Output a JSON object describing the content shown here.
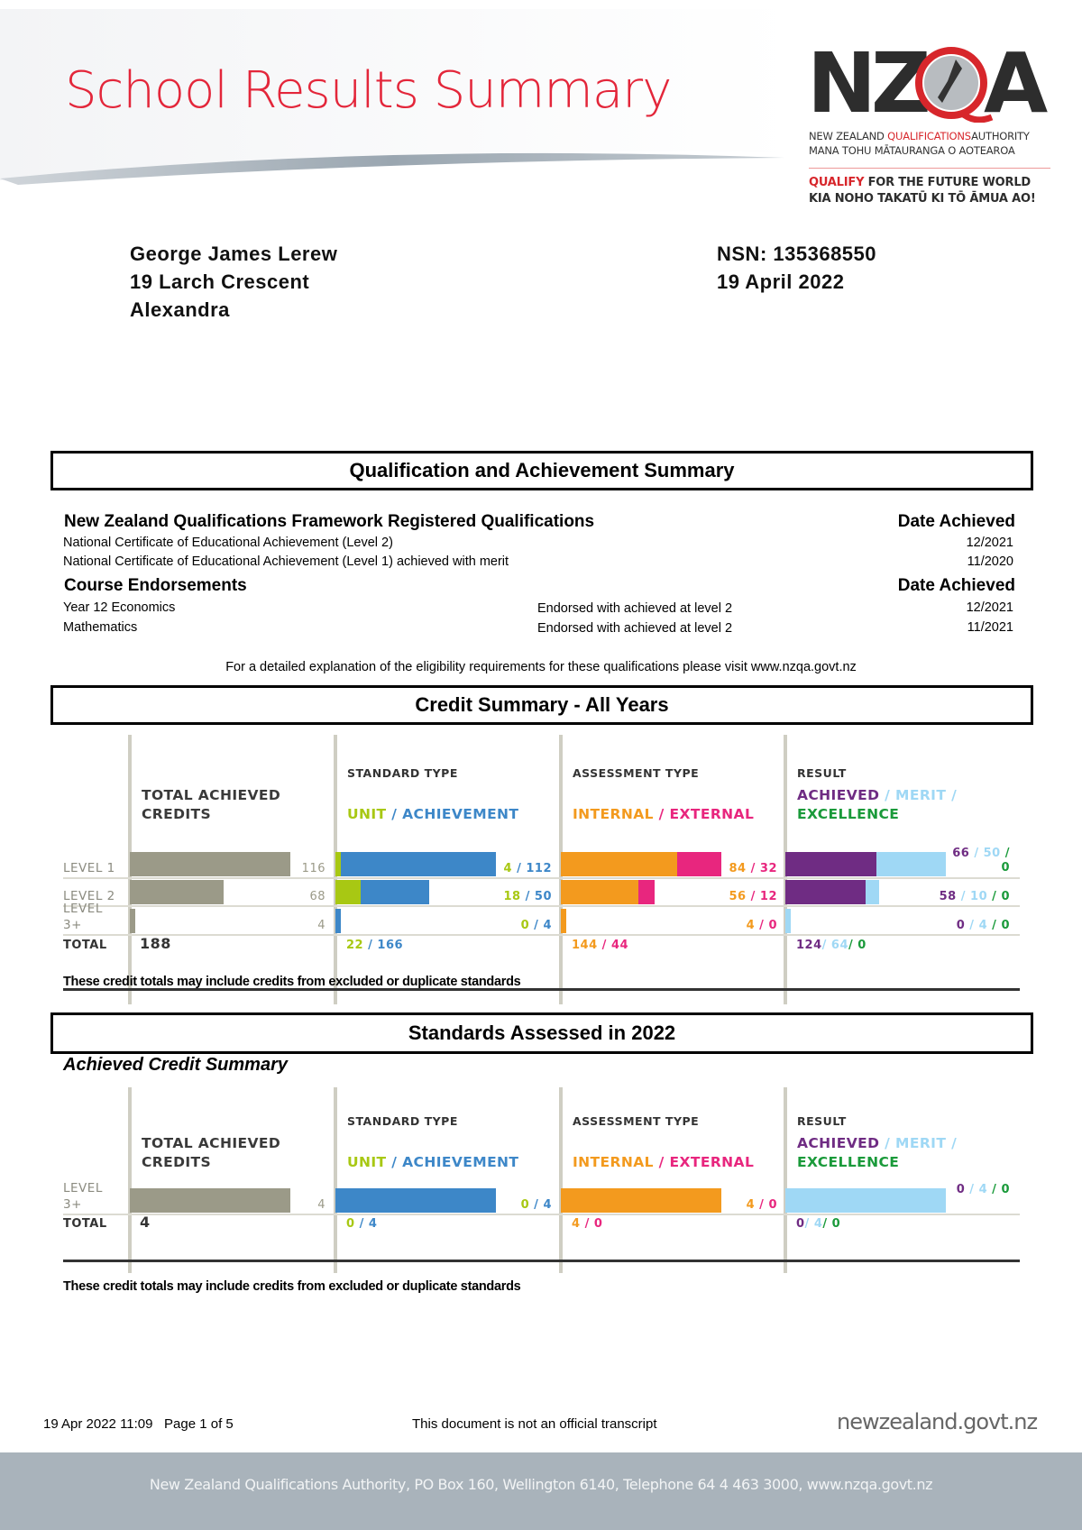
{
  "header": {
    "title": "School Results Summary",
    "logo": {
      "wordmark": "NZQA",
      "line1_a": "NEW ZEALAND ",
      "line1_b": "QUALIFICATIONS",
      "line1_c": "AUTHORITY",
      "line2": "MANA TOHU MĀTAURANGA O AOTEAROA",
      "tag1_a": "QUALIFY",
      "tag1_b": " FOR THE FUTURE WORLD",
      "tag2": "KIA NOHO TAKATŪ KI TŌ ĀMUA AO!"
    }
  },
  "student": {
    "name": "George James Lerew",
    "address1": "19 Larch Crescent",
    "address2": "Alexandra",
    "nsn": "NSN:  135368550",
    "date": "19 April 2022"
  },
  "qualification_summary": {
    "title": "Qualification and Achievement Summary",
    "qualifications_heading": "New Zealand Qualifications Framework Registered Qualifications",
    "date_heading": "Date Achieved",
    "qualifications": [
      {
        "name": "National Certificate of Educational Achievement (Level 2)",
        "date": "12/2021"
      },
      {
        "name": "National Certificate of Educational Achievement (Level 1) achieved with merit",
        "date": "11/2020"
      }
    ],
    "endorsements_heading": "Course Endorsements",
    "endorsements": [
      {
        "course": "Year 12 Economics",
        "endorsement": "Endorsed with achieved at level 2",
        "date": "12/2021"
      },
      {
        "course": "Mathematics",
        "endorsement": "Endorsed with achieved at level 2",
        "date": "11/2021"
      }
    ],
    "note": "For a detailed explanation of the eligibility requirements for these qualifications please visit www.nzqa.govt.nz"
  },
  "credit_summary": {
    "title": "Credit Summary - All Years",
    "note": "These credit totals may include credits from excluded or duplicate standards"
  },
  "standards_2022": {
    "title": "Standards Assessed in 2022",
    "subtitle": "Achieved Credit Summary",
    "note": "These credit totals may include credits from excluded or duplicate standards"
  },
  "colors": {
    "total": "#9b9a88",
    "unit": "#a8c813",
    "achievement": "#3d87c8",
    "internal": "#f39a1e",
    "external": "#e8267e",
    "achieved": "#6f2c83",
    "merit": "#9fd8f5",
    "excellence": "#1a9a3a"
  },
  "chart_data": [
    {
      "type": "bar",
      "headers": {
        "total": "TOTAL ACHIEVED CREDITS",
        "standard_type": "STANDARD TYPE",
        "standard_series": [
          "UNIT",
          "ACHIEVEMENT"
        ],
        "assessment_type": "ASSESSMENT TYPE",
        "assessment_series": [
          "INTERNAL",
          "EXTERNAL"
        ],
        "result": "RESULT",
        "result_series": [
          "ACHIEVED",
          "MERIT",
          "EXCELLENCE"
        ],
        "total_row": "TOTAL"
      },
      "rows": [
        {
          "level": "LEVEL 1",
          "total": 116,
          "unit": 4,
          "achievement": 112,
          "internal": 84,
          "external": 32,
          "achieved": 66,
          "merit": 50,
          "excellence": 0
        },
        {
          "level": "LEVEL 2",
          "total": 68,
          "unit": 18,
          "achievement": 50,
          "internal": 56,
          "external": 12,
          "achieved": 58,
          "merit": 10,
          "excellence": 0
        },
        {
          "level": "LEVEL 3+",
          "total": 4,
          "unit": 0,
          "achievement": 4,
          "internal": 4,
          "external": 0,
          "achieved": 0,
          "merit": 4,
          "excellence": 0
        }
      ],
      "totals": {
        "total": 188,
        "unit": 22,
        "achievement": 166,
        "internal": 144,
        "external": 44,
        "achieved": 124,
        "merit": 64,
        "excellence": 0
      }
    },
    {
      "type": "bar",
      "headers": {
        "total": "TOTAL ACHIEVED CREDITS",
        "standard_type": "STANDARD TYPE",
        "standard_series": [
          "UNIT",
          "ACHIEVEMENT"
        ],
        "assessment_type": "ASSESSMENT TYPE",
        "assessment_series": [
          "INTERNAL",
          "EXTERNAL"
        ],
        "result": "RESULT",
        "result_series": [
          "ACHIEVED",
          "MERIT",
          "EXCELLENCE"
        ],
        "total_row": "TOTAL"
      },
      "rows": [
        {
          "level": "LEVEL 3+",
          "total": 4,
          "unit": 0,
          "achievement": 4,
          "internal": 4,
          "external": 0,
          "achieved": 0,
          "merit": 4,
          "excellence": 0
        }
      ],
      "totals": {
        "total": 4,
        "unit": 0,
        "achievement": 4,
        "internal": 4,
        "external": 0,
        "achieved": 0,
        "merit": 4,
        "excellence": 0
      }
    }
  ],
  "footer": {
    "timestamp": "19 Apr 2022 11:09",
    "page": "Page 1 of 5",
    "disclaimer": "This document is not an official transcript",
    "govt_logo": "newzealand.govt.nz",
    "address": "New Zealand Qualifications Authority, PO Box 160, Wellington 6140, Telephone 64 4 463 3000, www.nzqa.govt.nz"
  }
}
